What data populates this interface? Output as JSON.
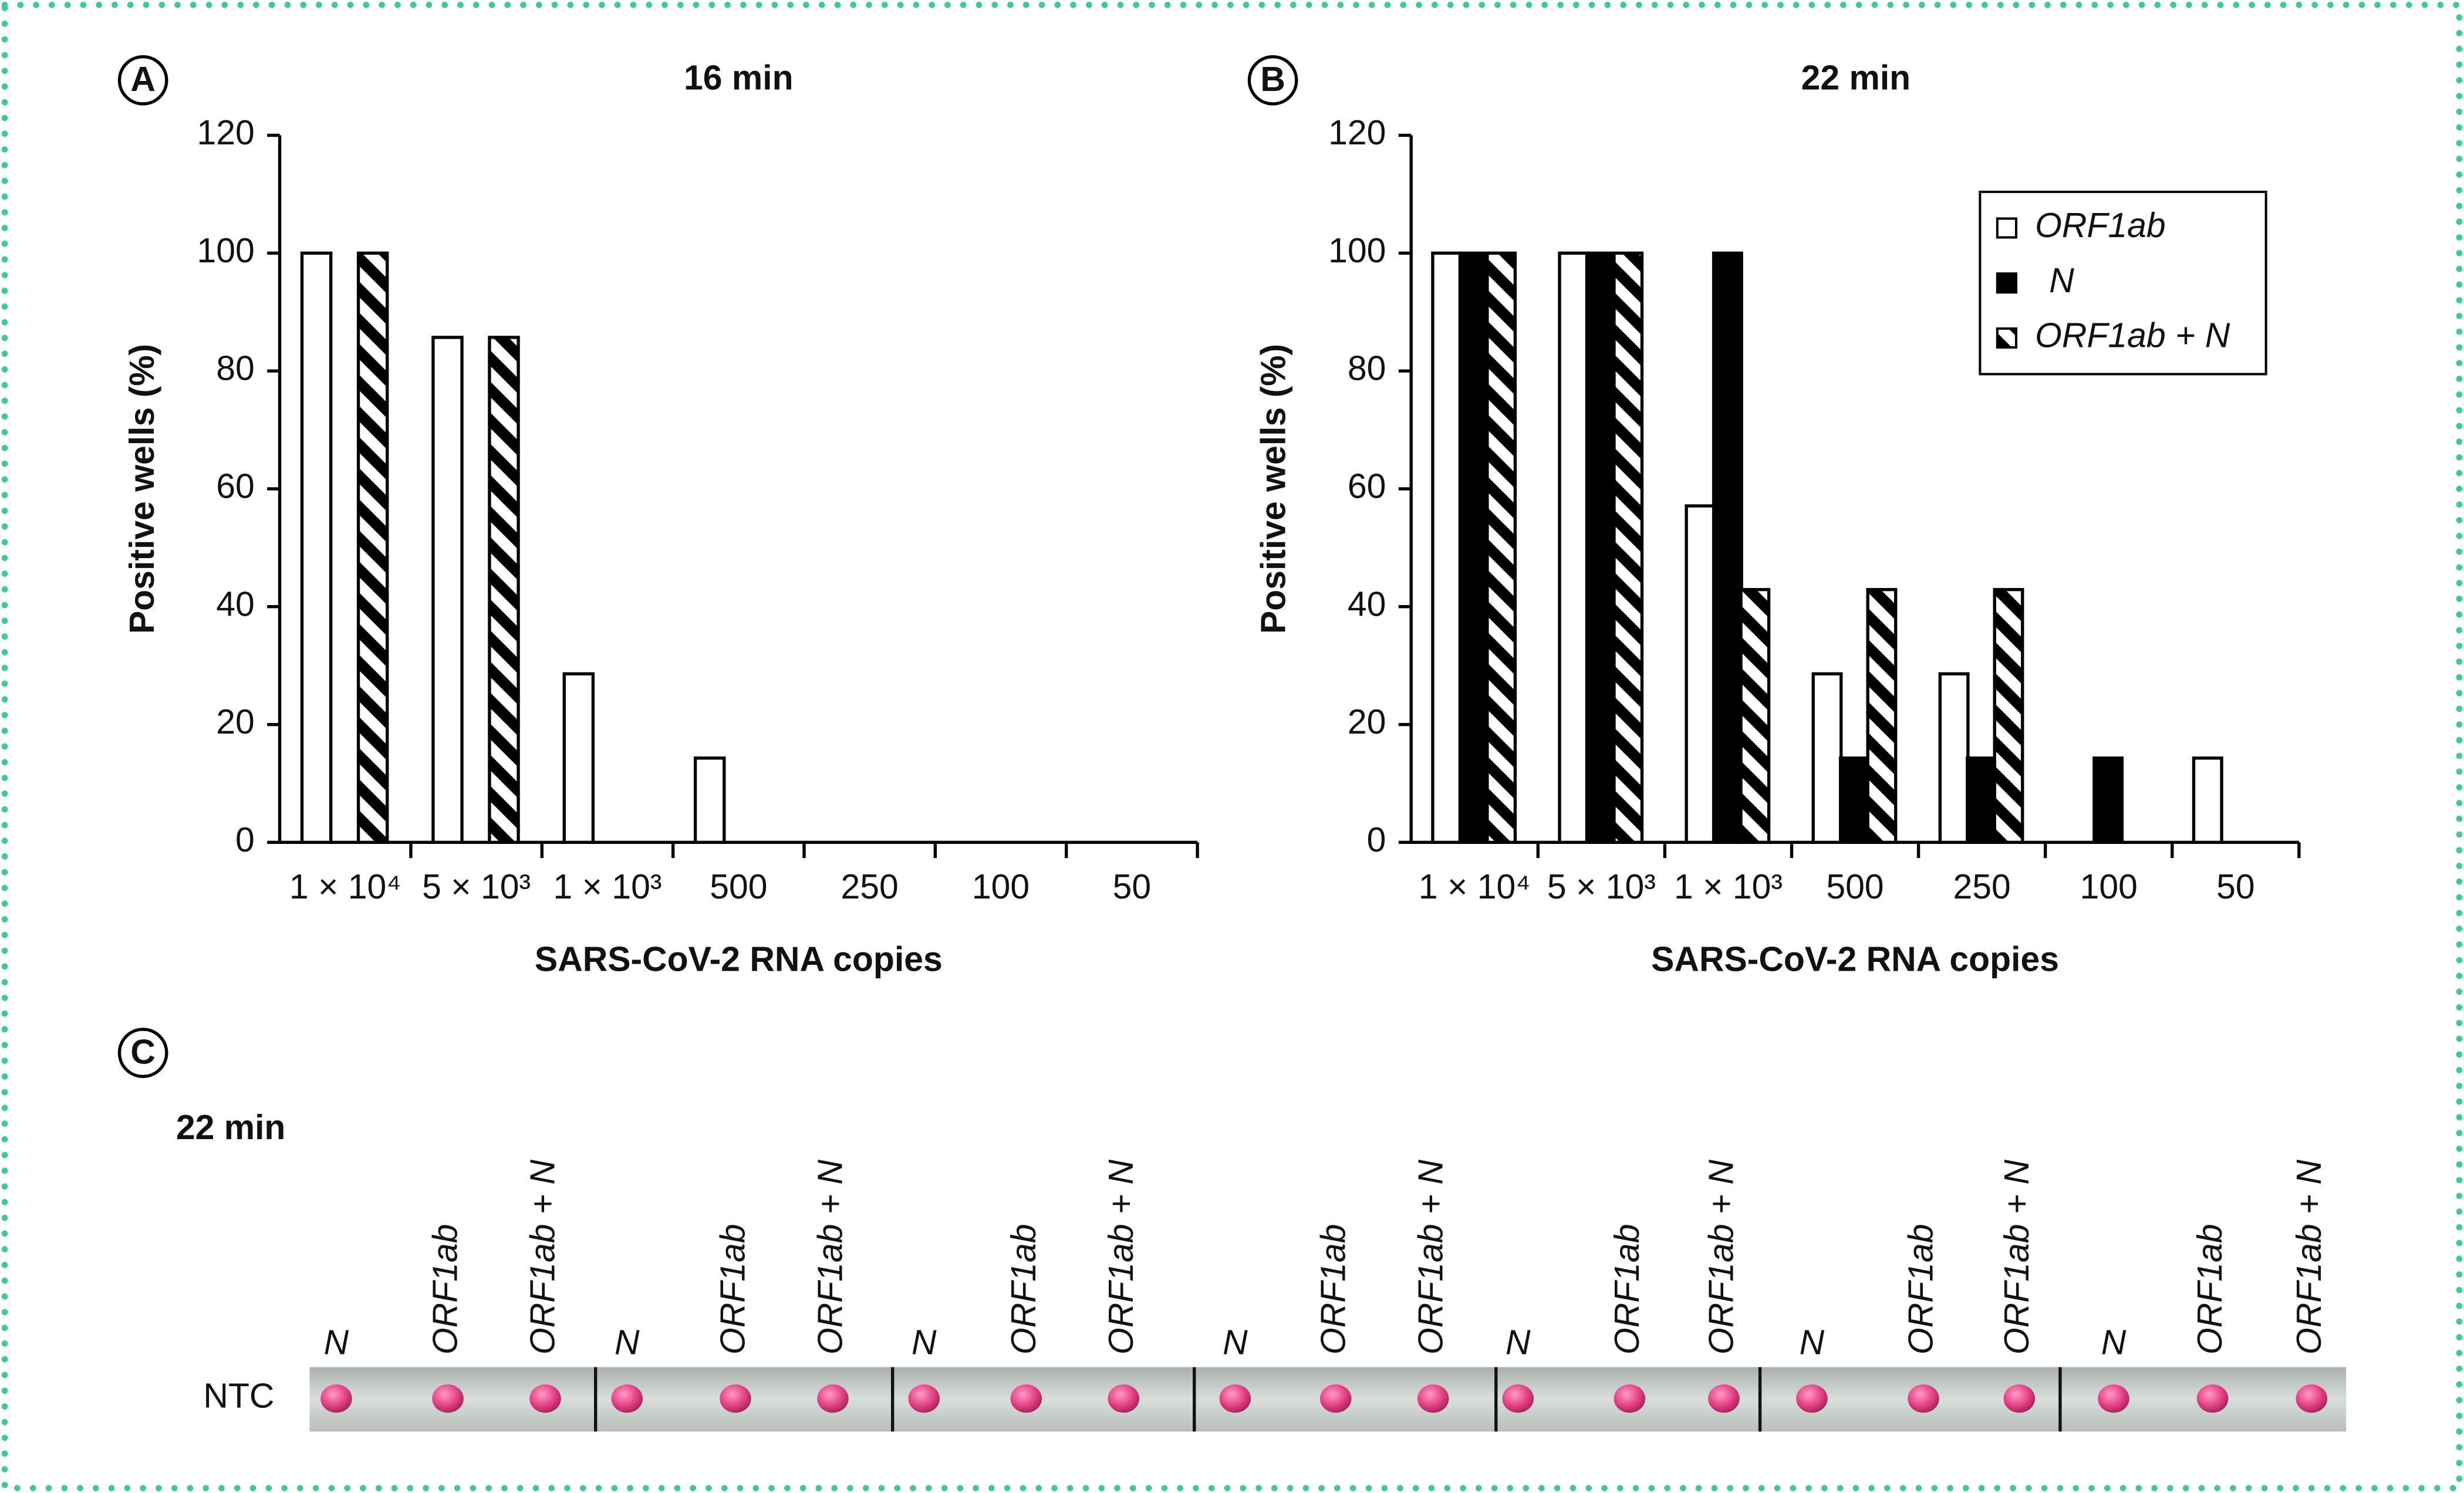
{
  "chart_data": [
    {
      "type": "bar",
      "panel_label": "A",
      "title": "16 min",
      "x_label": "SARS-CoV-2 RNA copies",
      "y_label": "Positive wells (%)",
      "categories": [
        "1 × 10⁴",
        "5 × 10³",
        "1 × 10³",
        "500",
        "250",
        "100",
        "50"
      ],
      "series": [
        {
          "name": "ORF1ab",
          "color": "#ffffff",
          "values": [
            100,
            85.7,
            28.6,
            14.3,
            0,
            0,
            0
          ]
        },
        {
          "name": "N",
          "color": "#000000",
          "values": [
            0,
            0,
            0,
            0,
            0,
            0,
            0
          ]
        },
        {
          "name": "ORF1ab + N",
          "color": "hatch",
          "values": [
            100,
            85.7,
            0,
            0,
            0,
            0,
            0
          ]
        }
      ],
      "ylim": [
        0,
        120
      ],
      "yticks": [
        0,
        20,
        40,
        60,
        80,
        100,
        120
      ],
      "legend": false
    },
    {
      "type": "bar",
      "panel_label": "B",
      "title": "22 min",
      "x_label": "SARS-CoV-2 RNA copies",
      "y_label": "Positive wells (%)",
      "categories": [
        "1 × 10⁴",
        "5 × 10³",
        "1 × 10³",
        "500",
        "250",
        "100",
        "50"
      ],
      "series": [
        {
          "name": "ORF1ab",
          "color": "#ffffff",
          "values": [
            100,
            100,
            57.1,
            28.6,
            28.6,
            0,
            14.3
          ]
        },
        {
          "name": "N",
          "color": "#000000",
          "values": [
            100,
            100,
            100,
            14.3,
            14.3,
            14.3,
            0
          ]
        },
        {
          "name": "ORF1ab + N",
          "color": "hatch",
          "values": [
            100,
            100,
            42.9,
            42.9,
            42.9,
            0,
            0
          ]
        }
      ],
      "ylim": [
        0,
        120
      ],
      "yticks": [
        0,
        20,
        40,
        60,
        80,
        100,
        120
      ],
      "legend": "upper right"
    }
  ],
  "panel_c": {
    "panel_label": "C",
    "title": "22 min",
    "row_label": "NTC",
    "columns": [
      "N",
      "ORF1ab",
      "ORF1ab + N",
      "N",
      "ORF1ab",
      "ORF1ab + N",
      "N",
      "ORF1ab",
      "ORF1ab + N",
      "N",
      "ORF1ab",
      "ORF1ab + N",
      "N",
      "ORF1ab",
      "ORF1ab + N",
      "N",
      "ORF1ab",
      "ORF1ab + N",
      "N",
      "ORF1ab",
      "ORF1ab + N"
    ]
  }
}
